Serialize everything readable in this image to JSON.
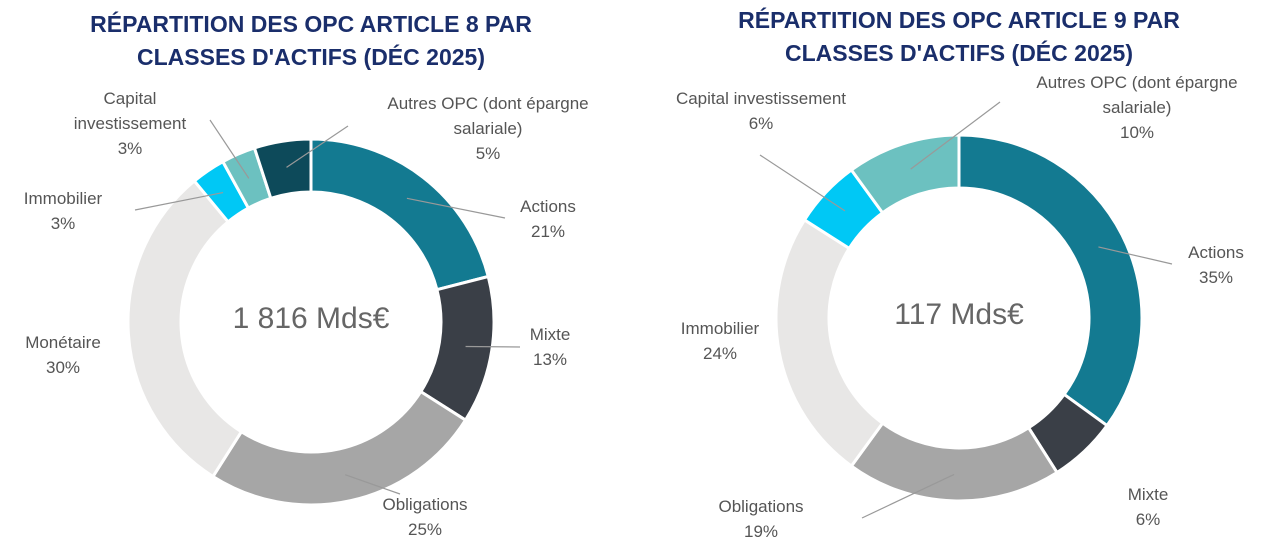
{
  "chart_data": [
    {
      "type": "donut",
      "title": "RÉPARTITION DES OPC ARTICLE 8 PAR CLASSES D'ACTIFS (DÉC 2025)",
      "center_label": "1 816 Mds€",
      "categories": [
        "Actions",
        "Mixte",
        "Obligations",
        "Monétaire",
        "Immobilier",
        "Capital investissement",
        "Autres OPC (dont épargne salariale)"
      ],
      "values": [
        21,
        13,
        25,
        30,
        3,
        3,
        5
      ],
      "value_labels": [
        "21%",
        "13%",
        "25%",
        "30%",
        "3%",
        "3%",
        "5%"
      ],
      "colors": [
        "#137a91",
        "#3a3f47",
        "#a6a6a6",
        "#e8e7e6",
        "#00c8f5",
        "#6cc1c0",
        "#0d4a5a"
      ]
    },
    {
      "type": "donut",
      "title": "RÉPARTITION DES OPC ARTICLE 9 PAR CLASSES D'ACTIFS (DÉC 2025)",
      "center_label": "117 Mds€",
      "categories": [
        "Actions",
        "Mixte",
        "Obligations",
        "Immobilier",
        "Capital investissement",
        "Autres OPC (dont épargne salariale)"
      ],
      "values": [
        35,
        6,
        19,
        24,
        6,
        10
      ],
      "value_labels": [
        "35%",
        "6%",
        "19%",
        "24%",
        "6%",
        "10%"
      ],
      "colors": [
        "#137a91",
        "#3a3f47",
        "#a6a6a6",
        "#e8e7e6",
        "#00c8f5",
        "#6cc1c0"
      ]
    }
  ]
}
